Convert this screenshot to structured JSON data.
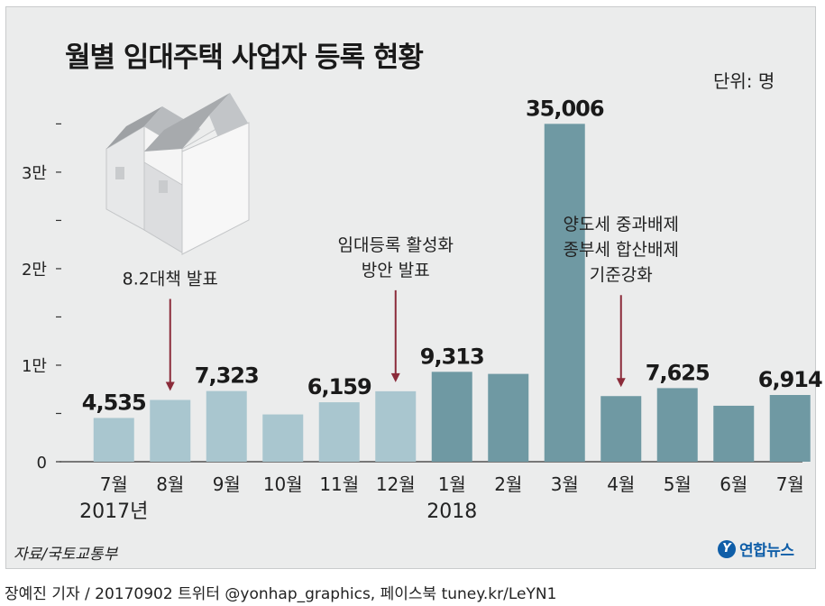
{
  "title": "월별 임대주택 사업자 등록 현황",
  "unit": "단위: 명",
  "source": "자료/국토교통부",
  "logo_text": "연합뉴스",
  "logo_mark": "Y",
  "credit": "장예진 기자 / 20170902  트위터 @yonhap_graphics, 페이스북 tuney.kr/LeYN1",
  "colors": {
    "bar_2017": "#a9c6cf",
    "bar_2018": "#6f99a3",
    "arrow": "#8b2b3a",
    "background": "#ebecec"
  },
  "chart_data": {
    "type": "bar",
    "title": "월별 임대주택 사업자 등록 현황",
    "categories": [
      "7월",
      "8월",
      "9월",
      "10월",
      "11월",
      "12월",
      "1월",
      "2월",
      "3월",
      "4월",
      "5월",
      "6월",
      "7월"
    ],
    "values": [
      4535,
      6400,
      7323,
      4900,
      6159,
      7300,
      9313,
      9100,
      35006,
      6800,
      7625,
      5800,
      6914
    ],
    "value_labels": [
      "4,535",
      "",
      "7,323",
      "",
      "6,159",
      "",
      "9,313",
      "",
      "35,006",
      "",
      "7,625",
      "",
      "6,914"
    ],
    "years": [
      {
        "label": "2017년",
        "category_index": 0
      },
      {
        "label": "2018",
        "category_index": 6
      }
    ],
    "ylim": [
      0,
      37000
    ],
    "yticks": [
      0,
      5000,
      10000,
      15000,
      20000,
      25000,
      30000,
      35000
    ],
    "ytick_labels": [
      "0",
      "",
      "1만",
      "",
      "2만",
      "",
      "3만",
      ""
    ],
    "annotations": [
      {
        "category_index": 1,
        "lines": [
          "8.2대책 발표"
        ]
      },
      {
        "category_index": 5,
        "lines": [
          "임대등록 활성화",
          "방안 발표"
        ]
      },
      {
        "category_index": 9,
        "lines": [
          "양도세 중과배제",
          "종부세 합산배제",
          "기준강화"
        ]
      }
    ]
  }
}
